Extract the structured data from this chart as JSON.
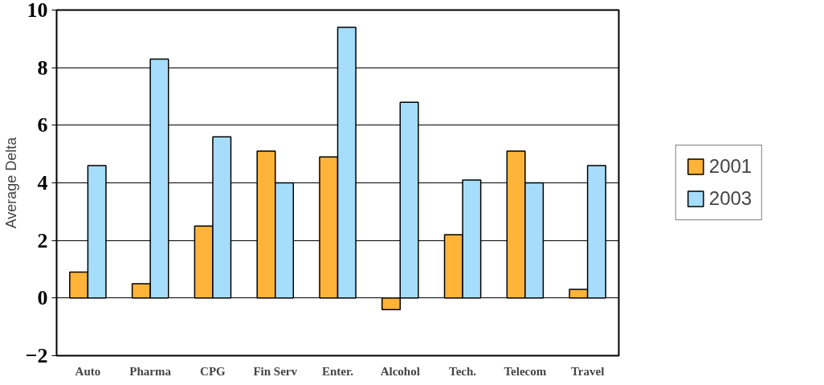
{
  "chart_data": {
    "type": "bar",
    "ylabel": "Average Delta",
    "categories": [
      "Auto",
      "Pharma",
      "CPG",
      "Fin Serv",
      "Enter.",
      "Alcohol",
      "Tech.",
      "Telecom",
      "Travel"
    ],
    "series": [
      {
        "name": "2001",
        "color": "#ffb338",
        "values": [
          0.9,
          0.5,
          2.5,
          5.1,
          4.9,
          -0.4,
          2.2,
          5.1,
          0.3
        ]
      },
      {
        "name": "2003",
        "color": "#a6ddfc",
        "values": [
          4.6,
          8.3,
          5.6,
          4.0,
          9.4,
          6.8,
          4.1,
          4.0,
          4.6
        ]
      }
    ],
    "ylim": [
      -2,
      10
    ],
    "yticks": [
      -2,
      0,
      2,
      4,
      6,
      8,
      10
    ],
    "grid": "y",
    "legend": "right"
  }
}
